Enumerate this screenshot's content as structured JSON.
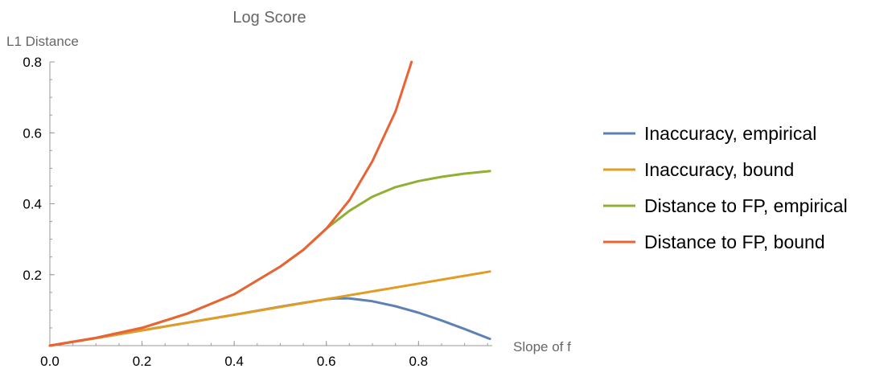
{
  "chart_data": {
    "type": "line",
    "title": "Log Score",
    "xlabel": "Slope of f",
    "ylabel": "L1 Distance",
    "xlim": [
      0,
      0.96
    ],
    "ylim": [
      0,
      0.8
    ],
    "x_ticks": [
      0.0,
      0.2,
      0.4,
      0.6,
      0.8
    ],
    "x_tick_labels": [
      "0.0",
      "0.2",
      "0.4",
      "0.6",
      "0.8"
    ],
    "y_ticks": [
      0.2,
      0.4,
      0.6,
      0.8
    ],
    "y_tick_labels": [
      "0.2",
      "0.4",
      "0.6",
      "0.8"
    ],
    "grid": false,
    "legend_position": "right",
    "series": [
      {
        "name": "Inaccuracy, empirical",
        "color": "#5e81b5",
        "x": [
          0.0,
          0.1,
          0.2,
          0.3,
          0.4,
          0.5,
          0.6,
          0.62,
          0.65,
          0.7,
          0.75,
          0.8,
          0.85,
          0.9,
          0.955
        ],
        "y": [
          0.0,
          0.021,
          0.043,
          0.065,
          0.087,
          0.11,
          0.131,
          0.133,
          0.133,
          0.125,
          0.111,
          0.093,
          0.071,
          0.047,
          0.019
        ]
      },
      {
        "name": "Inaccuracy, bound",
        "color": "#e19c24",
        "x": [
          0.0,
          0.1,
          0.2,
          0.3,
          0.4,
          0.5,
          0.6,
          0.7,
          0.8,
          0.9,
          0.955
        ],
        "y": [
          0.0,
          0.021,
          0.043,
          0.065,
          0.087,
          0.109,
          0.131,
          0.153,
          0.175,
          0.197,
          0.209
        ]
      },
      {
        "name": "Distance to FP, empirical",
        "color": "#8fb032",
        "x": [
          0.0,
          0.1,
          0.2,
          0.3,
          0.4,
          0.5,
          0.55,
          0.6,
          0.62,
          0.65,
          0.7,
          0.75,
          0.8,
          0.85,
          0.9,
          0.955
        ],
        "y": [
          0.0,
          0.022,
          0.05,
          0.091,
          0.145,
          0.223,
          0.27,
          0.33,
          0.35,
          0.38,
          0.42,
          0.447,
          0.464,
          0.476,
          0.485,
          0.492
        ]
      },
      {
        "name": "Distance to FP, bound",
        "color": "#eb6235",
        "x": [
          0.0,
          0.1,
          0.2,
          0.3,
          0.4,
          0.5,
          0.55,
          0.6,
          0.65,
          0.7,
          0.75,
          0.785
        ],
        "y": [
          0.0,
          0.022,
          0.05,
          0.091,
          0.145,
          0.223,
          0.27,
          0.33,
          0.41,
          0.52,
          0.66,
          0.8
        ]
      }
    ]
  }
}
